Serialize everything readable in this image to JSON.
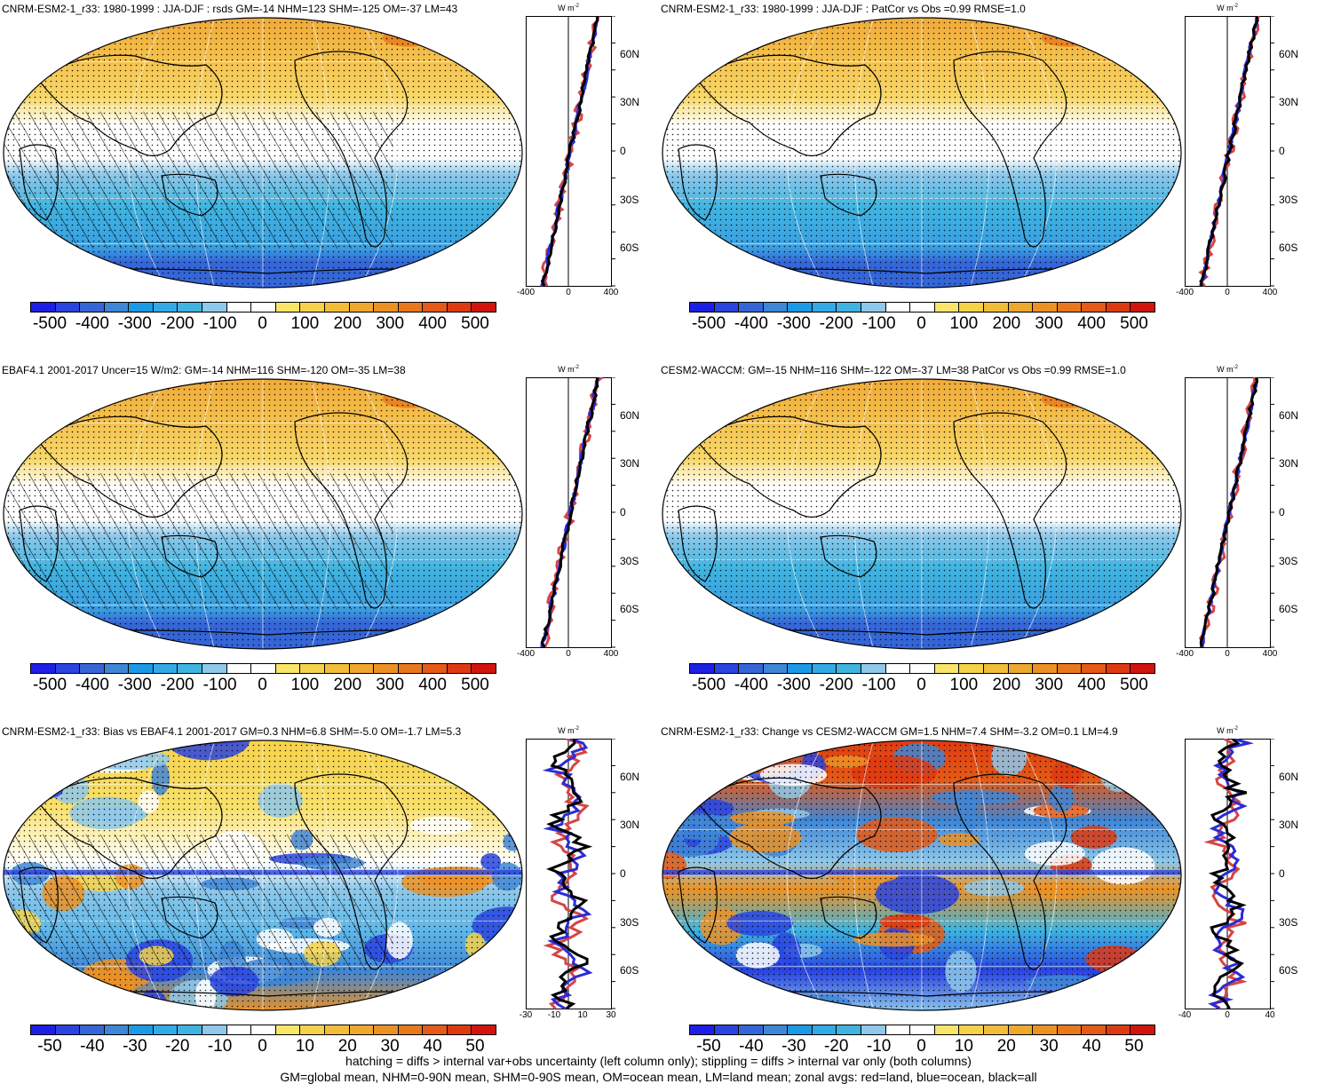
{
  "colors": {
    "land": "#d64545",
    "ocean": "#2b2bd6",
    "all": "#000000",
    "colorbar": [
      "#1e1ee6",
      "#2a44e0",
      "#3566d8",
      "#3f86d6",
      "#1a9ae6",
      "#33aae6",
      "#3fb4e0",
      "#8ec8ea",
      "#ffffff",
      "#ffffff",
      "#f8e66a",
      "#f5d24a",
      "#f2bd3a",
      "#efa82e",
      "#ec9224",
      "#e8781c",
      "#e45a16",
      "#de3a12",
      "#d2140e"
    ]
  },
  "panels": [
    {
      "id": "top-left",
      "title": "CNRM-ESM2-1_r33: 1980-1999 : JJA-DJF : rsds GM=-14 NHM=123 SHM=-125 OM=-37 LM=43",
      "map_style": "gradient",
      "hatched": true,
      "colorbar_ticks": [
        "-500",
        "-400",
        "-300",
        "-200",
        "-100",
        "0",
        "100",
        "200",
        "300",
        "400",
        "500"
      ],
      "unit": "W m",
      "unit_sup": "-2",
      "zonal_xticks": [
        "-400",
        "0",
        "400"
      ],
      "lat_labels": [
        "60N",
        "30N",
        "0",
        "30S",
        "60S"
      ]
    },
    {
      "id": "top-right",
      "title": "CNRM-ESM2-1_r33: 1980-1999 : JJA-DJF : PatCor vs Obs =0.99 RMSE=1.0",
      "map_style": "gradient",
      "hatched": false,
      "colorbar_ticks": [
        "-500",
        "-400",
        "-300",
        "-200",
        "-100",
        "0",
        "100",
        "200",
        "300",
        "400",
        "500"
      ],
      "unit": "W m",
      "unit_sup": "-2",
      "zonal_xticks": [
        "-400",
        "0",
        "400"
      ],
      "lat_labels": [
        "60N",
        "30N",
        "0",
        "30S",
        "60S"
      ]
    },
    {
      "id": "middle-left",
      "title": "EBAF4.1 2001-2017 Uncer=15 W/m2: GM=-14 NHM=116 SHM=-120 OM=-35 LM=38",
      "map_style": "gradient",
      "hatched": true,
      "colorbar_ticks": [
        "-500",
        "-400",
        "-300",
        "-200",
        "-100",
        "0",
        "100",
        "200",
        "300",
        "400",
        "500"
      ],
      "unit": "W m",
      "unit_sup": "-2",
      "zonal_xticks": [
        "-400",
        "0",
        "400"
      ],
      "lat_labels": [
        "60N",
        "30N",
        "0",
        "30S",
        "60S"
      ]
    },
    {
      "id": "middle-right",
      "title": "CESM2-WACCM: GM=-15 NHM=116 SHM=-122 OM=-37 LM=38 PatCor vs Obs =0.99 RMSE=1.0",
      "map_style": "gradient",
      "hatched": false,
      "colorbar_ticks": [
        "-500",
        "-400",
        "-300",
        "-200",
        "-100",
        "0",
        "100",
        "200",
        "300",
        "400",
        "500"
      ],
      "unit": "W m",
      "unit_sup": "-2",
      "zonal_xticks": [
        "-400",
        "0",
        "400"
      ],
      "lat_labels": [
        "60N",
        "30N",
        "0",
        "30S",
        "60S"
      ]
    },
    {
      "id": "bottom-left",
      "title": "CNRM-ESM2-1_r33: Bias vs EBAF4.1 2001-2017 GM=0.3 NHM=6.8 SHM=-5.0 OM=-1.7 LM=5.3",
      "map_style": "bias",
      "hatched": true,
      "colorbar_ticks": [
        "-50",
        "-40",
        "-30",
        "-20",
        "-10",
        "0",
        "10",
        "20",
        "30",
        "40",
        "50"
      ],
      "unit": "W m",
      "unit_sup": "-2",
      "zonal_xticks": [
        "-30",
        "-10",
        "10",
        "30"
      ],
      "lat_labels": [
        "60N",
        "30N",
        "0",
        "30S",
        "60S"
      ]
    },
    {
      "id": "bottom-right",
      "title": "CNRM-ESM2-1_r33: Change vs CESM2-WACCM GM=1.5 NHM=7.4 SHM=-3.2 OM=0.1 LM=4.9",
      "map_style": "change",
      "hatched": false,
      "colorbar_ticks": [
        "-50",
        "-40",
        "-30",
        "-20",
        "-10",
        "0",
        "10",
        "20",
        "30",
        "40",
        "50"
      ],
      "unit": "W m",
      "unit_sup": "-2",
      "zonal_xticks": [
        "-40",
        "0",
        "40"
      ],
      "lat_labels": [
        "60N",
        "30N",
        "0",
        "30S",
        "60S"
      ]
    }
  ],
  "footer": {
    "line1": "hatching = diffs > internal var+obs uncertainty (left column only); stippling = diffs > internal var only (both columns)",
    "line2": "GM=global mean, NHM=0-90N mean, SHM=0-90S mean, OM=ocean mean, LM=land mean; zonal avgs: red=land, blue=ocean, black=all"
  }
}
